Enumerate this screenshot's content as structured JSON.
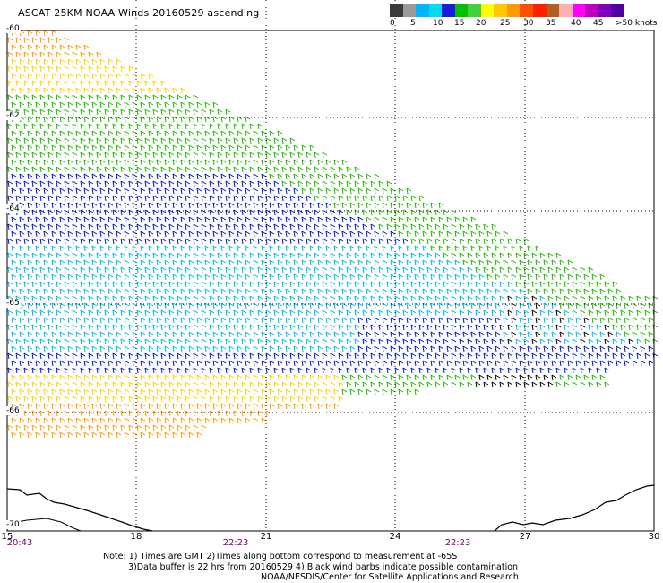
{
  "title": "ASCAT 25KM NOAA Winds 20160529 ascending",
  "colorbar": {
    "colors": [
      "#3a3a3a",
      "#9a9a9a",
      "#00b4ff",
      "#00dcf0",
      "#1a1ae0",
      "#00c000",
      "#40d040",
      "#ffff00",
      "#ffc800",
      "#ff9a00",
      "#ff5000",
      "#ff2000",
      "#b06020",
      "#ffb0b0",
      "#ff00ff",
      "#c000c0",
      "#8000c0",
      "#5000a0"
    ],
    "labels": [
      "0",
      "5",
      "10",
      "15",
      "20",
      "25",
      "30",
      "35",
      "40",
      "45",
      ">50 knots"
    ]
  },
  "map": {
    "lon_labels": [
      "15",
      "18",
      "21",
      "24",
      "27",
      "30"
    ],
    "lat_labels": [
      "-60",
      "-62",
      "-64",
      "-65",
      "-66",
      "-70"
    ],
    "time_labels": [
      "20:43",
      "22:23",
      "22:23"
    ],
    "palette": {
      "orange": "#ff9a00",
      "yellow": "#ffd000",
      "green": "#22b800",
      "blue": "#0018c8",
      "cyan": "#00b8e8",
      "black": "#000000"
    }
  },
  "notes": [
    "Note: 1) Times are GMT 2)Times along bottom correspond to measurement at -65S",
    "3)Data buffer is 22 hrs from 20160529 4) Black wind barbs indicate possible contamination",
    "NOAA/NESDIS/Center for Satellite Applications and Research"
  ]
}
